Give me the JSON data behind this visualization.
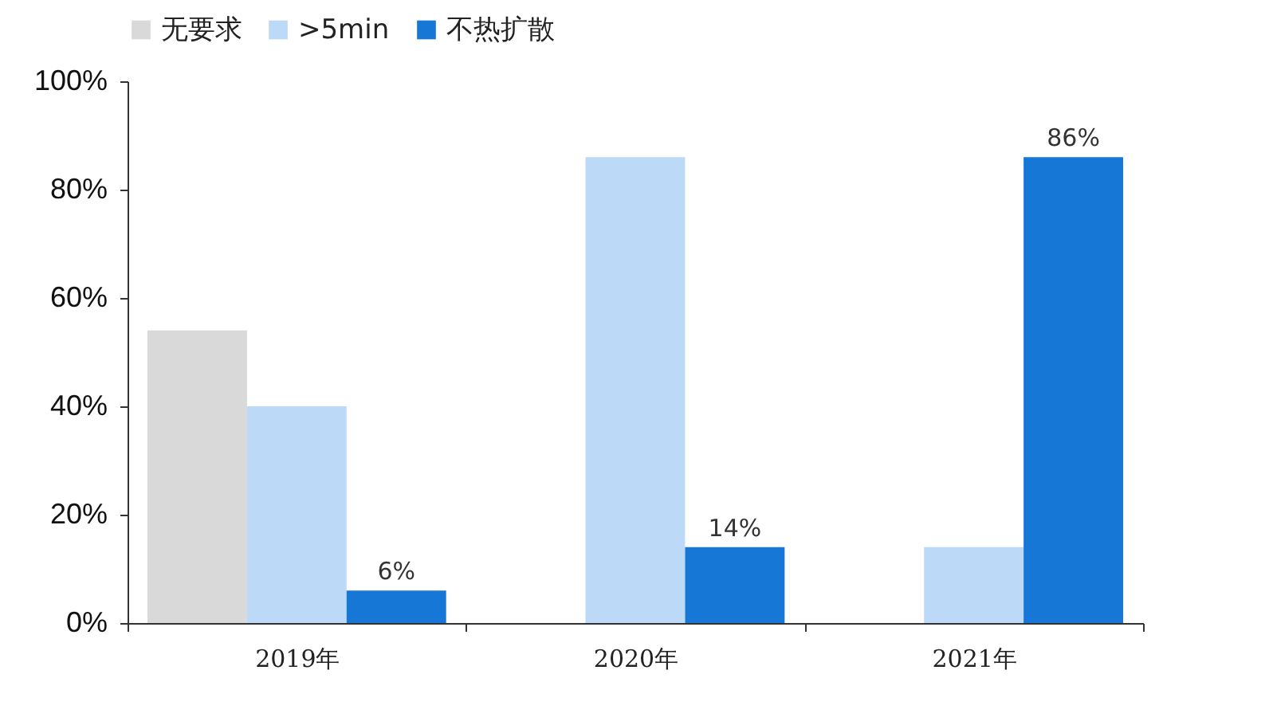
{
  "chart_data": {
    "type": "bar",
    "categories": [
      "2019年",
      "2020年",
      "2021年"
    ],
    "series": [
      {
        "name": "无要求",
        "color": "#d9d9d9",
        "values": [
          54,
          null,
          null
        ]
      },
      {
        "name": ">5min",
        "color": "#bcd9f7",
        "values": [
          40,
          86,
          14
        ]
      },
      {
        "name": "不热扩散",
        "color": "#1777d6",
        "values": [
          6,
          14,
          86
        ],
        "value_labels": [
          "6%",
          "14%",
          "86%"
        ]
      }
    ],
    "ylim": [
      0,
      100
    ],
    "yticks": [
      {
        "value": 0,
        "label": "0%"
      },
      {
        "value": 20,
        "label": "20%"
      },
      {
        "value": 40,
        "label": "40%"
      },
      {
        "value": 60,
        "label": "60%"
      },
      {
        "value": 80,
        "label": "80%"
      },
      {
        "value": 100,
        "label": "100%"
      }
    ],
    "grid": false,
    "legend": "top"
  }
}
